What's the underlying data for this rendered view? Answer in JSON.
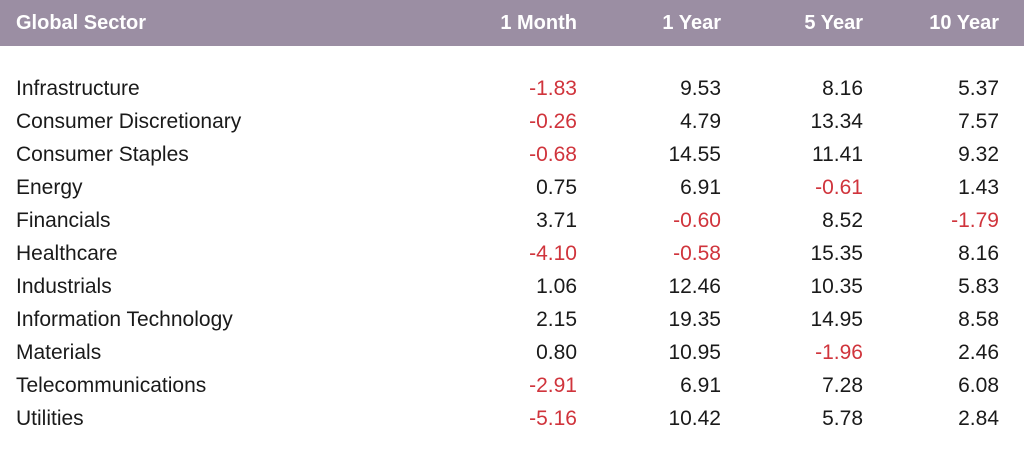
{
  "colors": {
    "header_bg": "#9b8ea3",
    "header_text": "#ffffff",
    "positive": "#1a1a1a",
    "negative": "#d0343c"
  },
  "chart_data": {
    "type": "table",
    "columns": [
      "Global Sector",
      "1 Month",
      "1 Year",
      "5 Year",
      "10 Year"
    ],
    "rows": [
      {
        "sector": "Infrastructure",
        "values": [
          "-1.83",
          "9.53",
          "8.16",
          "5.37"
        ]
      },
      {
        "sector": "Consumer Discretionary",
        "values": [
          "-0.26",
          "4.79",
          "13.34",
          "7.57"
        ]
      },
      {
        "sector": "Consumer Staples",
        "values": [
          "-0.68",
          "14.55",
          "11.41",
          "9.32"
        ]
      },
      {
        "sector": "Energy",
        "values": [
          "0.75",
          "6.91",
          "-0.61",
          "1.43"
        ]
      },
      {
        "sector": "Financials",
        "values": [
          "3.71",
          "-0.60",
          "8.52",
          "-1.79"
        ]
      },
      {
        "sector": "Healthcare",
        "values": [
          "-4.10",
          "-0.58",
          "15.35",
          "8.16"
        ]
      },
      {
        "sector": "Industrials",
        "values": [
          "1.06",
          "12.46",
          "10.35",
          "5.83"
        ]
      },
      {
        "sector": "Information Technology",
        "values": [
          "2.15",
          "19.35",
          "14.95",
          "8.58"
        ]
      },
      {
        "sector": "Materials",
        "values": [
          "0.80",
          "10.95",
          "-1.96",
          "2.46"
        ]
      },
      {
        "sector": "Telecommunications",
        "values": [
          "-2.91",
          "6.91",
          "7.28",
          "6.08"
        ]
      },
      {
        "sector": "Utilities",
        "values": [
          "-5.16",
          "10.42",
          "5.78",
          "2.84"
        ]
      }
    ]
  }
}
